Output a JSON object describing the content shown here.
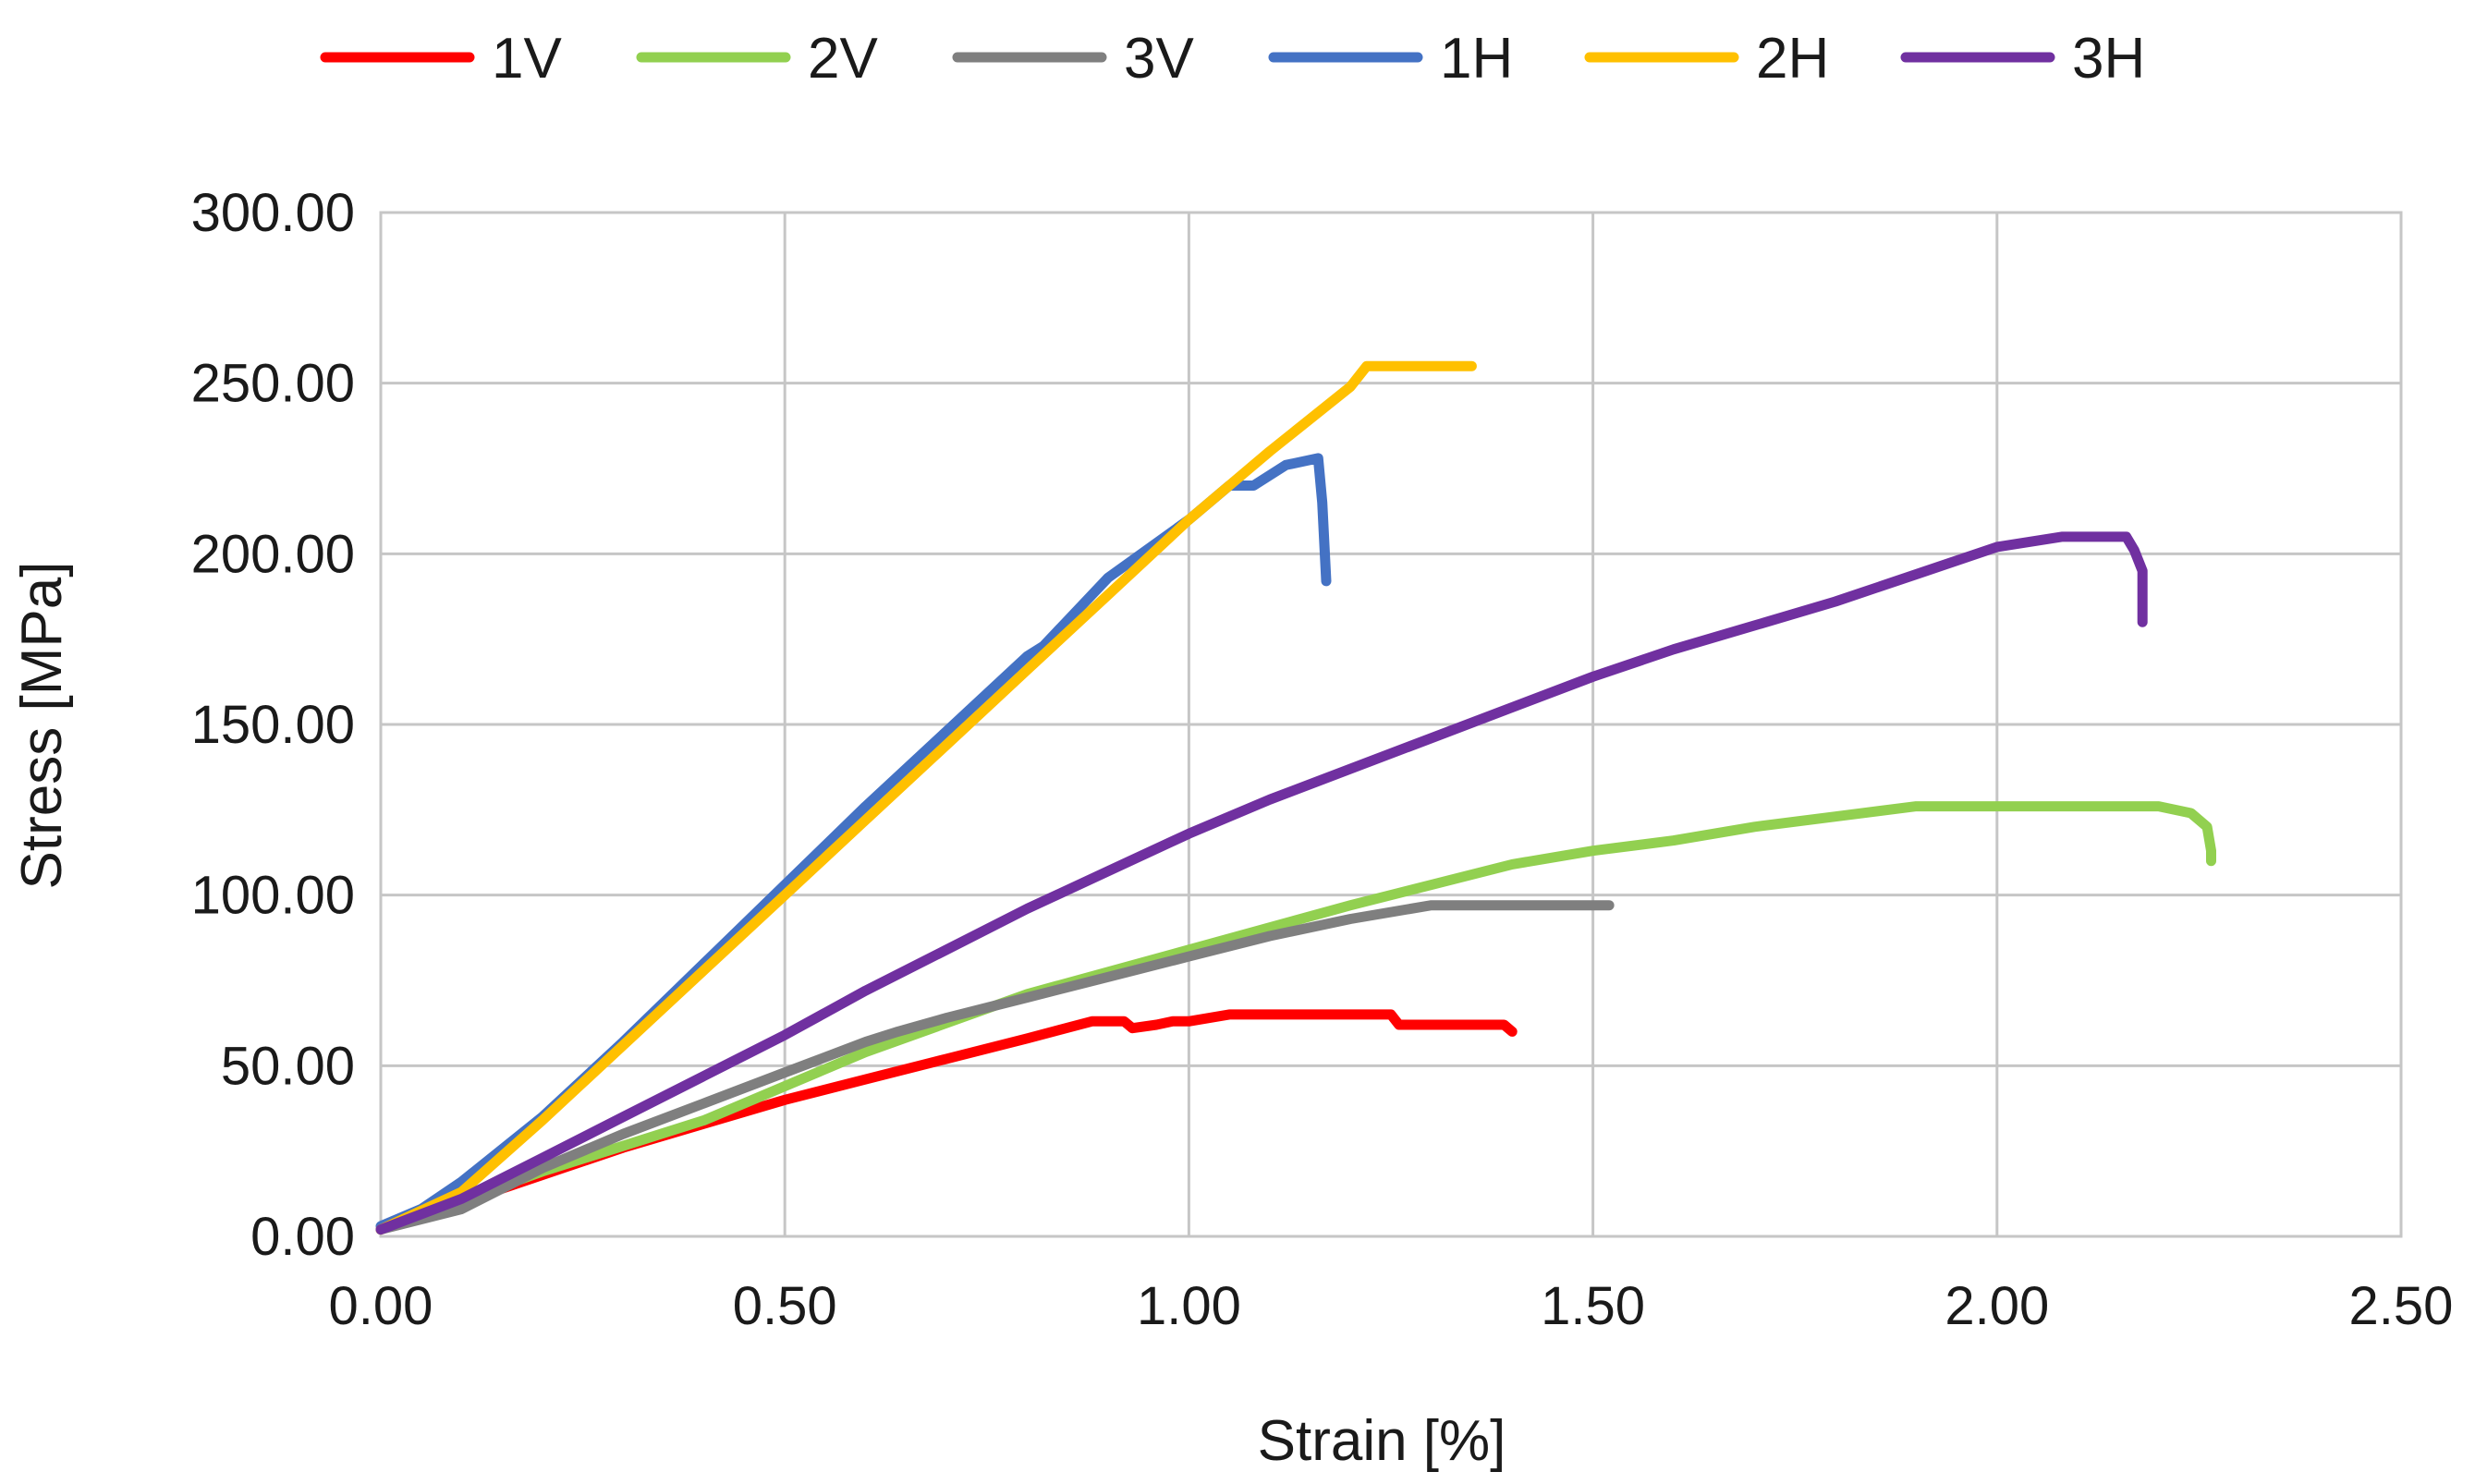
{
  "chart_data": {
    "type": "line",
    "title": "",
    "xlabel": "Strain [%]",
    "ylabel": "Stress [MPa]",
    "xlim": [
      0,
      2.5
    ],
    "ylim": [
      0,
      300
    ],
    "x_ticks": [
      0,
      0.5,
      1.0,
      1.5,
      2.0,
      2.5
    ],
    "y_ticks": [
      0,
      50,
      100,
      150,
      200,
      250,
      300
    ],
    "x_tick_labels": [
      "0.00",
      "0.50",
      "1.00",
      "1.50",
      "2.00",
      "2.50"
    ],
    "y_tick_labels": [
      "0.00",
      "50.00",
      "100.00",
      "150.00",
      "200.00",
      "250.00",
      "300.00"
    ],
    "grid": true,
    "legend_position": "top",
    "series": [
      {
        "name": "1V",
        "color": "#ff0000",
        "points": [
          [
            0,
            2
          ],
          [
            0.1,
            10
          ],
          [
            0.2,
            18
          ],
          [
            0.3,
            26
          ],
          [
            0.4,
            33
          ],
          [
            0.5,
            40
          ],
          [
            0.6,
            46
          ],
          [
            0.7,
            52
          ],
          [
            0.8,
            58
          ],
          [
            0.88,
            63
          ],
          [
            0.92,
            63
          ],
          [
            0.93,
            61
          ],
          [
            0.96,
            62
          ],
          [
            0.98,
            63
          ],
          [
            1.0,
            63
          ],
          [
            1.05,
            65
          ],
          [
            1.1,
            65
          ],
          [
            1.2,
            65
          ],
          [
            1.25,
            65
          ],
          [
            1.26,
            62
          ],
          [
            1.3,
            62
          ],
          [
            1.39,
            62
          ],
          [
            1.4,
            60
          ]
        ]
      },
      {
        "name": "2V",
        "color": "#92d050",
        "points": [
          [
            0,
            2
          ],
          [
            0.2,
            19
          ],
          [
            0.4,
            34
          ],
          [
            0.6,
            54
          ],
          [
            0.8,
            71
          ],
          [
            1.0,
            84
          ],
          [
            1.2,
            97
          ],
          [
            1.4,
            109
          ],
          [
            1.5,
            113
          ],
          [
            1.6,
            116
          ],
          [
            1.7,
            120
          ],
          [
            1.8,
            123
          ],
          [
            1.9,
            126
          ],
          [
            2.0,
            126
          ],
          [
            2.1,
            126
          ],
          [
            2.2,
            126
          ],
          [
            2.24,
            124
          ],
          [
            2.26,
            120
          ],
          [
            2.265,
            113
          ],
          [
            2.265,
            110
          ]
        ]
      },
      {
        "name": "3V",
        "color": "#7f7f7f",
        "points": [
          [
            0,
            2
          ],
          [
            0.1,
            8
          ],
          [
            0.2,
            20
          ],
          [
            0.3,
            30
          ],
          [
            0.4,
            39
          ],
          [
            0.5,
            48
          ],
          [
            0.6,
            57
          ],
          [
            0.64,
            60
          ],
          [
            0.7,
            64
          ],
          [
            0.8,
            70
          ],
          [
            0.9,
            76
          ],
          [
            1.0,
            82
          ],
          [
            1.1,
            88
          ],
          [
            1.2,
            93
          ],
          [
            1.3,
            97
          ],
          [
            1.4,
            97
          ],
          [
            1.52,
            97
          ]
        ]
      },
      {
        "name": "1H",
        "color": "#4472c4",
        "points": [
          [
            0,
            3
          ],
          [
            0.05,
            8
          ],
          [
            0.1,
            16
          ],
          [
            0.2,
            35
          ],
          [
            0.3,
            57
          ],
          [
            0.4,
            80
          ],
          [
            0.5,
            103
          ],
          [
            0.6,
            126
          ],
          [
            0.7,
            148
          ],
          [
            0.8,
            170
          ],
          [
            0.82,
            173
          ],
          [
            0.9,
            193
          ],
          [
            1.0,
            210
          ],
          [
            1.05,
            220
          ],
          [
            1.08,
            220
          ],
          [
            1.12,
            226
          ],
          [
            1.16,
            228
          ],
          [
            1.165,
            215
          ],
          [
            1.17,
            192
          ]
        ]
      },
      {
        "name": "2H",
        "color": "#ffc000",
        "points": [
          [
            0,
            2
          ],
          [
            0.1,
            13
          ],
          [
            0.2,
            34
          ],
          [
            0.3,
            56
          ],
          [
            0.4,
            78
          ],
          [
            0.5,
            100
          ],
          [
            0.6,
            122
          ],
          [
            0.7,
            144
          ],
          [
            0.8,
            166
          ],
          [
            0.9,
            188
          ],
          [
            1.0,
            210
          ],
          [
            1.1,
            230
          ],
          [
            1.2,
            249
          ],
          [
            1.22,
            255
          ],
          [
            1.3,
            255
          ],
          [
            1.35,
            255
          ]
        ]
      },
      {
        "name": "3H",
        "color": "#7030a0",
        "points": [
          [
            0,
            2
          ],
          [
            0.1,
            11
          ],
          [
            0.2,
            23
          ],
          [
            0.3,
            35
          ],
          [
            0.4,
            47
          ],
          [
            0.5,
            59
          ],
          [
            0.6,
            72
          ],
          [
            0.7,
            84
          ],
          [
            0.8,
            96
          ],
          [
            0.9,
            107
          ],
          [
            1.0,
            118
          ],
          [
            1.1,
            128
          ],
          [
            1.2,
            137
          ],
          [
            1.3,
            146
          ],
          [
            1.4,
            155
          ],
          [
            1.5,
            164
          ],
          [
            1.6,
            172
          ],
          [
            1.7,
            179
          ],
          [
            1.8,
            186
          ],
          [
            1.9,
            194
          ],
          [
            2.0,
            202
          ],
          [
            2.08,
            205
          ],
          [
            2.16,
            205
          ],
          [
            2.17,
            201
          ],
          [
            2.18,
            195
          ],
          [
            2.18,
            180
          ]
        ]
      }
    ]
  }
}
